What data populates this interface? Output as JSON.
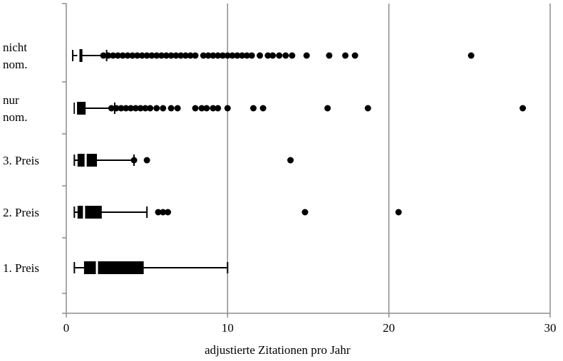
{
  "chart_data": {
    "type": "boxplot",
    "orientation": "horizontal",
    "title": "",
    "xlabel": "adjustierte Zitationen pro Jahr",
    "ylabel": "",
    "xlim": [
      0,
      30
    ],
    "x_ticks": [
      "0",
      "10",
      "20",
      "30"
    ],
    "grid": "vertical major gridlines",
    "categories": [
      {
        "label_lines": [
          "nicht",
          "nom."
        ],
        "min": 0.4,
        "q1": 0.7,
        "median": 0.75,
        "q3": 1.0,
        "whisker_hi": 2.5,
        "outliers": [
          2.3,
          2.6,
          2.9,
          3.2,
          3.5,
          3.8,
          4.1,
          4.4,
          4.7,
          5.0,
          5.3,
          5.6,
          5.9,
          6.2,
          6.5,
          6.8,
          7.1,
          7.4,
          7.7,
          8.0,
          8.5,
          8.8,
          9.1,
          9.4,
          9.7,
          10.0,
          10.3,
          10.6,
          10.9,
          11.2,
          11.5,
          12.0,
          12.5,
          12.8,
          13.2,
          13.6,
          14.0,
          14.9,
          16.3,
          17.3,
          17.9,
          25.1
        ]
      },
      {
        "label_lines": [
          "nur",
          "nom."
        ],
        "min": 0.5,
        "q1": 0.55,
        "median": 0.6,
        "q3": 1.2,
        "whisker_hi": 3.0,
        "outliers": [
          2.8,
          3.1,
          3.4,
          3.7,
          4.0,
          4.3,
          4.6,
          4.9,
          5.2,
          5.6,
          6.0,
          6.5,
          6.9,
          8.0,
          8.4,
          8.7,
          9.1,
          9.4,
          10.0,
          11.6,
          12.2,
          16.2,
          18.7,
          28.3
        ]
      },
      {
        "label_lines": [
          "3. Preis"
        ],
        "min": 0.5,
        "q1": 0.7,
        "median": 1.2,
        "q3": 1.9,
        "whisker_hi": 4.2,
        "outliers": [
          4.2,
          5.0,
          13.9
        ]
      },
      {
        "label_lines": [
          "2. Preis"
        ],
        "min": 0.5,
        "q1": 0.7,
        "median": 1.1,
        "q3": 2.2,
        "whisker_hi": 5.0,
        "outliers": [
          5.7,
          6.0,
          6.3,
          14.8,
          20.6
        ]
      },
      {
        "label_lines": [
          "1. Preis"
        ],
        "min": 0.5,
        "q1": 1.1,
        "median": 1.9,
        "q3": 4.8,
        "whisker_hi": 10.0,
        "outliers": []
      }
    ]
  }
}
